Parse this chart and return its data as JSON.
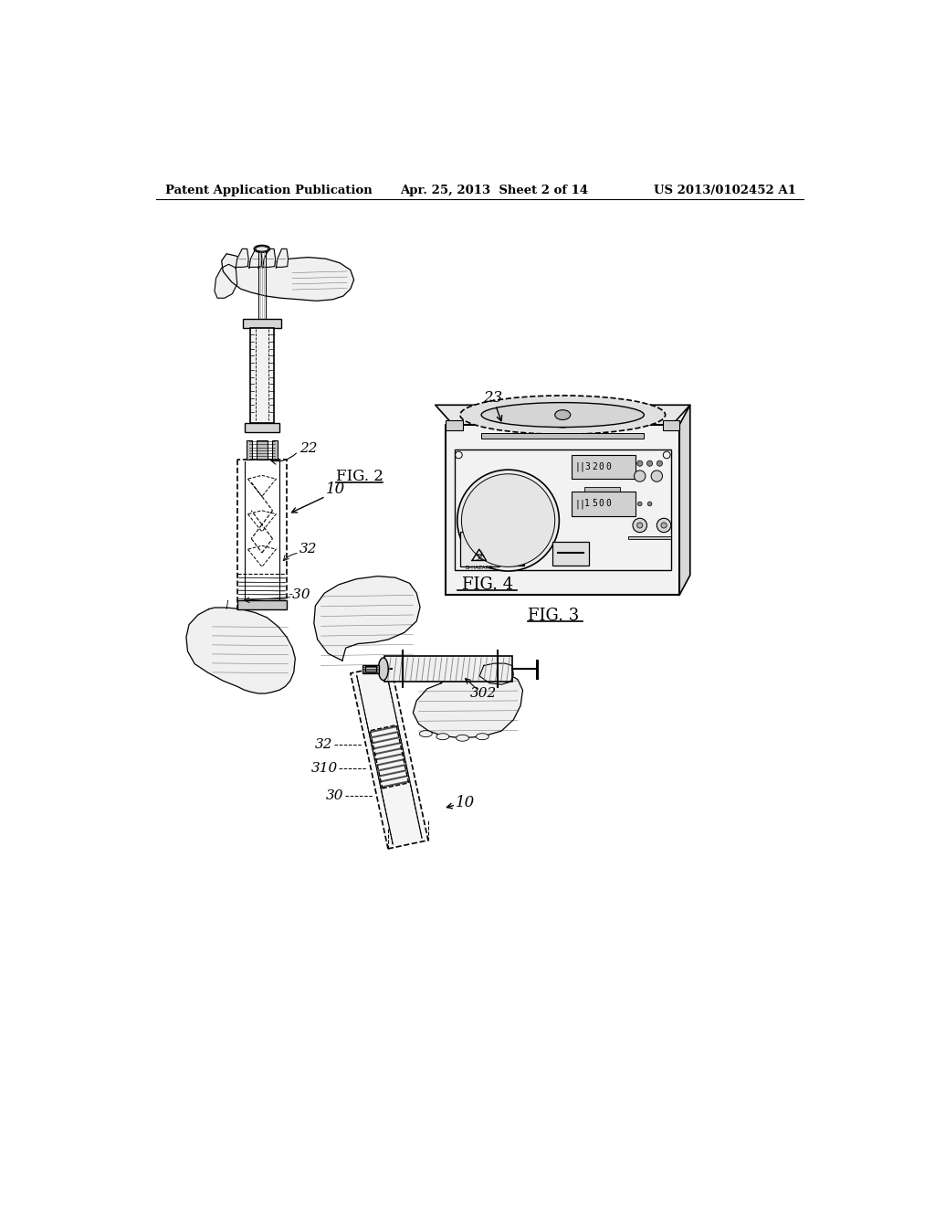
{
  "bg_color": "#ffffff",
  "header_left": "Patent Application Publication",
  "header_mid": "Apr. 25, 2013  Sheet 2 of 14",
  "header_right": "US 2013/0102452 A1",
  "fig2_label": "FIG. 2",
  "fig3_label": "FIG. 3",
  "fig4_label": "FIG. 4",
  "label_22": "22",
  "label_10_fig2": "10",
  "label_32_fig2": "32",
  "label_30_fig2": "30",
  "label_23": "23",
  "label_10_fig4": "10",
  "label_30_fig4": "30",
  "label_310": "310",
  "label_32_fig4": "32",
  "label_302": "302"
}
